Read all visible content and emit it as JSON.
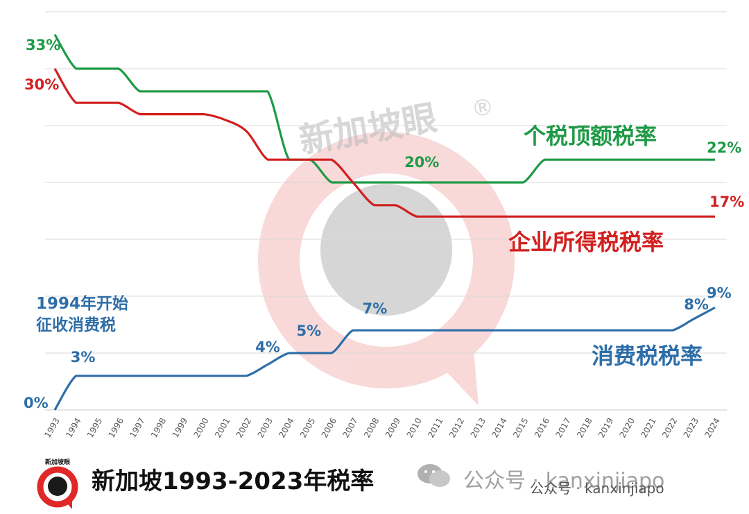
{
  "chart_data": {
    "type": "line",
    "x": [
      "1993",
      "1994",
      "1995",
      "1996",
      "1997",
      "1998",
      "1999",
      "2000",
      "2001",
      "2002",
      "2003",
      "2004",
      "2005",
      "2006",
      "2007",
      "2008",
      "2009",
      "2010",
      "2011",
      "2012",
      "2013",
      "2014",
      "2015",
      "2016",
      "2017",
      "2018",
      "2019",
      "2020",
      "2021",
      "2022",
      "2023",
      "2024"
    ],
    "ylim": [
      0,
      35
    ],
    "grid": true,
    "series": [
      {
        "name": "个税顶额税率",
        "color": "#1e9a46",
        "values": [
          33,
          30,
          30,
          30,
          28,
          28,
          28,
          28,
          28,
          28,
          28,
          22,
          22,
          20,
          20,
          20,
          20,
          20,
          20,
          20,
          20,
          20,
          20,
          22,
          22,
          22,
          22,
          22,
          22,
          22,
          22,
          22
        ],
        "point_labels": [
          {
            "x": "1993",
            "text": "33%"
          },
          {
            "x": "2010",
            "text": "20%"
          },
          {
            "x": "2024",
            "text": "22%"
          }
        ]
      },
      {
        "name": "企业所得税税率",
        "color": "#d21f1f",
        "values": [
          30,
          27,
          27,
          27,
          26,
          26,
          26,
          26,
          25.5,
          24.5,
          22,
          22,
          22,
          22,
          20,
          18,
          18,
          17,
          17,
          17,
          17,
          17,
          17,
          17,
          17,
          17,
          17,
          17,
          17,
          17,
          17,
          17
        ],
        "point_labels": [
          {
            "x": "1993",
            "text": "30%"
          },
          {
            "x": "2024",
            "text": "17%"
          }
        ]
      },
      {
        "name": "消费税税率",
        "color": "#2e6ea8",
        "values": [
          0,
          3,
          3,
          3,
          3,
          3,
          3,
          3,
          3,
          3,
          4,
          5,
          5,
          5,
          7,
          7,
          7,
          7,
          7,
          7,
          7,
          7,
          7,
          7,
          7,
          7,
          7,
          7,
          7,
          7,
          8,
          9
        ],
        "point_labels": [
          {
            "x": "1993",
            "text": "0%"
          },
          {
            "x": "1994",
            "text": "3%"
          },
          {
            "x": "2003",
            "text": "4%"
          },
          {
            "x": "2005",
            "text": "5%"
          },
          {
            "x": "2008",
            "text": "7%"
          },
          {
            "x": "2023",
            "text": "8%"
          },
          {
            "x": "2024",
            "text": "9%"
          }
        ]
      }
    ],
    "annotations": [
      "1994年开始",
      "征收消费税"
    ]
  },
  "footer": {
    "title": "新加坡1993-2023年税率",
    "logo_text": "新加坡眼",
    "watermark_main": "新加坡眼",
    "watermark_account": "公众号 · kanxinjiapo",
    "watermark_account_2": "公众号 · kanxinjiapo"
  },
  "colors": {
    "green": "#1e9a46",
    "red": "#d21f1f",
    "blue": "#2e6ea8",
    "grid": "#d9d9d9"
  },
  "icons": [
    "logo-icon",
    "wechat-icon"
  ]
}
